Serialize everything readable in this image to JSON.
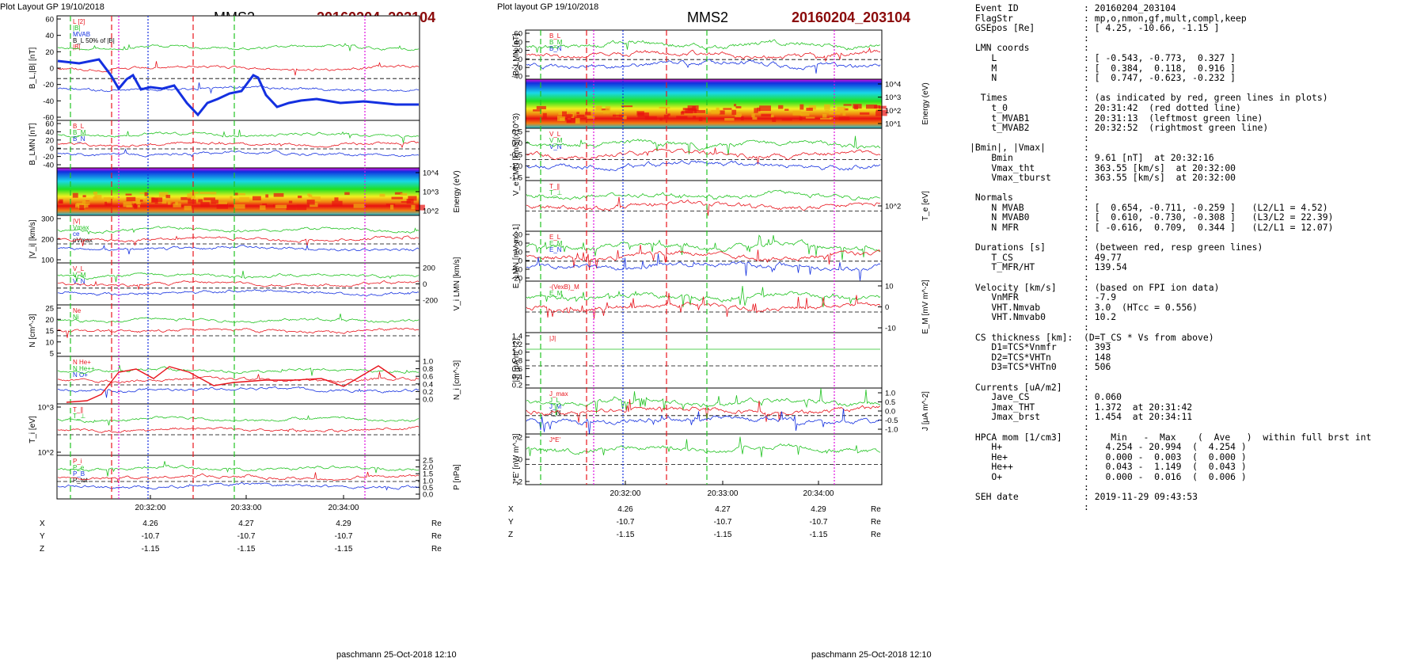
{
  "colors": {
    "red": "#e8141c",
    "green": "#22c322",
    "blue": "#1430e0",
    "magenta": "#e010e0",
    "black": "#000000",
    "gray": "#8a8a8a",
    "title_red": "#8b0a0a"
  },
  "figures": [
    {
      "id": "left",
      "header": "Plot Layout GP 19/10/2018",
      "spacecraft": "MMS2",
      "event": "20160204_203104",
      "footer": "paschmann 25-Oct-2018 12:10",
      "x_ticks": [
        "20:32:00",
        "20:33:00",
        "20:34:00"
      ],
      "orbit": {
        "rows": [
          [
            "X",
            "4.26",
            "4.27",
            "4.29",
            "Re"
          ],
          [
            "Y",
            "-10.7",
            "-10.7",
            "-10.7",
            "Re"
          ],
          [
            "Z",
            "-1.15",
            "-1.15",
            "-1.15",
            "Re"
          ]
        ]
      },
      "panels": [
        {
          "ylabel": "B_L,|B| [nT]",
          "left_ticks": [
            "60",
            "40",
            "20",
            "0",
            "-20",
            "-40",
            "-60"
          ],
          "right_ticks": [],
          "right_label": "",
          "legend": [
            "L [2]",
            "|B|",
            "MVAB",
            "B_L 50% of |B|",
            "|B|"
          ]
        },
        {
          "ylabel": "B_LMN [nT]",
          "left_ticks": [
            "60",
            "40",
            "20",
            "0",
            "-20",
            "-40"
          ],
          "right_ticks": [],
          "right_label": "",
          "legend": [
            "B_L",
            "B_M",
            "B_N"
          ]
        },
        {
          "ylabel": "",
          "left_ticks": [],
          "right_ticks": [
            "10^4",
            "10^3",
            "10^2"
          ],
          "right_label": "Energy (eV)",
          "legend": []
        },
        {
          "ylabel": "|V_i| [km/s]",
          "left_ticks": [
            "300",
            "200",
            "100"
          ],
          "right_ticks": [],
          "right_label": "",
          "legend": [
            "|V|",
            "Vmax",
            "ce",
            "pVmax"
          ]
        },
        {
          "ylabel": "",
          "left_ticks": [],
          "right_ticks": [
            "200",
            "0",
            "-200"
          ],
          "right_label": "V_i LMN [km/s]",
          "legend": [
            "V_L",
            "V_M",
            "V_N"
          ]
        },
        {
          "ylabel": "N [cm^-3]",
          "left_ticks": [
            "25",
            "20",
            "15",
            "10",
            "5"
          ],
          "right_ticks": [],
          "right_label": "",
          "legend": [
            "Ne",
            "Ni"
          ]
        },
        {
          "ylabel": "",
          "left_ticks": [],
          "right_ticks": [
            "1.0",
            "0.8",
            "0.6",
            "0.4",
            "0.2",
            "0.0"
          ],
          "right_label": "N_i [cm^-3]",
          "legend": [
            "N He+",
            "N He++",
            "N O+"
          ]
        },
        {
          "ylabel": "T_i [eV]",
          "left_ticks": [
            "10^3",
            "10^2"
          ],
          "right_ticks": [],
          "right_label": "",
          "legend": [
            "T_∥",
            "T_⊥"
          ]
        },
        {
          "ylabel": "",
          "left_ticks": [],
          "right_ticks": [
            "2.5",
            "2.0",
            "1.5",
            "1.0",
            "0.5",
            "0.0"
          ],
          "right_label": "P [nPa]",
          "legend": [
            "P_i",
            "P_e",
            "P_B",
            "P_tot"
          ]
        }
      ]
    },
    {
      "id": "right",
      "header": "Plot layout GP 19/10/2018",
      "spacecraft": "MMS2",
      "event": "20160204_203104",
      "footer": "paschmann 25-Oct-2018 12:10",
      "x_ticks": [
        "20:32:00",
        "20:33:00",
        "20:34:00"
      ],
      "orbit": {
        "rows": [
          [
            "X",
            "4.26",
            "4.27",
            "4.29",
            "Re"
          ],
          [
            "Y",
            "-10.7",
            "-10.7",
            "-10.7",
            "Re"
          ],
          [
            "Z",
            "-1.15",
            "-1.15",
            "-1.15",
            "Re"
          ]
        ]
      },
      "panels": [
        {
          "ylabel": "B_LMN [nT]",
          "left_ticks": [
            "60",
            "40",
            "20",
            "0",
            "-20",
            "-40"
          ],
          "right_ticks": [],
          "right_label": "",
          "legend": [
            "B_L",
            "B_M",
            "B_N"
          ]
        },
        {
          "ylabel": "",
          "left_ticks": [],
          "right_ticks": [
            "10^4",
            "10^3",
            "10^2",
            "10^1"
          ],
          "right_label": "Energy (eV)",
          "legend": []
        },
        {
          "ylabel": "V_e LMN [km/s](x10^3)",
          "left_ticks": [
            "0.5",
            "0.0",
            "-0.5",
            "-1.0",
            "-1.5"
          ],
          "right_ticks": [],
          "right_label": "",
          "legend": [
            "V_L",
            "V_M",
            "V_N"
          ]
        },
        {
          "ylabel": "",
          "left_ticks": [],
          "right_ticks": [
            "10^2"
          ],
          "right_label": "T_e [eV]",
          "legend": [
            "T_∥",
            "T_⊥"
          ]
        },
        {
          "ylabel": "E_LMN [mV m^-1]",
          "left_ticks": [
            "30",
            "20",
            "10",
            "0",
            "-10",
            "-20"
          ],
          "right_ticks": [],
          "right_label": "",
          "legend": [
            "E_L",
            "E_M",
            "E_N"
          ]
        },
        {
          "ylabel": "",
          "left_ticks": [],
          "right_ticks": [
            "10",
            "0",
            "-10"
          ],
          "right_label": "E_M [mV m^-2]",
          "legend": [
            "-(VexB)_M",
            "E_M"
          ]
        },
        {
          "ylabel": "|J| [μA m^-2]",
          "left_ticks": [
            "1.4",
            "1.2",
            "1.0",
            "0.8",
            "0.6",
            "0.4",
            "0.2"
          ],
          "right_ticks": [],
          "right_label": "",
          "legend": [
            "|J|"
          ]
        },
        {
          "ylabel": "",
          "left_ticks": [],
          "right_ticks": [
            "1.0",
            "0.5",
            "0.0",
            "-0.5",
            "-1.0"
          ],
          "right_label": "J [μA m^-2]",
          "legend": [
            "J_max",
            "J_L",
            "J_M",
            "J_N"
          ]
        },
        {
          "ylabel": "J*E' [nW m^-3]",
          "left_ticks": [
            "2",
            "0",
            "-2"
          ],
          "right_ticks": [],
          "right_label": "",
          "legend": [
            "J*E'"
          ]
        }
      ]
    }
  ],
  "info_text": [
    " Event ID            : 20160204_203104",
    " FlagStr             : mp,o,nmon,gf,mult,compl,keep",
    " GSEpos [Re]         : [ 4.25, -10.66, -1.15 ]",
    "                     :",
    " LMN coords          :",
    "    L                : [ -0.543, -0.773,  0.327 ]",
    "    M                : [  0.384,  0.118,  0.916 ]",
    "    N                : [  0.747, -0.623, -0.232 ]",
    "                     :",
    "  Times              : (as indicated by red, green lines in plots)",
    "    t_0              : 20:31:42  (red dotted line)",
    "    t_MVAB1          : 20:31:13  (leftmost green line)",
    "    t_MVAB2          : 20:32:52  (rightmost green line)",
    "                     :",
    "|Bmin|, |Vmax|       :",
    "    Bmin             : 9.61 [nT]  at 20:32:16",
    "    Vmax_tht         : 363.55 [km/s]  at 20:32:00",
    "    Vmax_tburst      : 363.55 [km/s]  at 20:32:00",
    "                     :",
    " Normals             :",
    "    N MVAB           : [  0.654, -0.711, -0.259 ]   (L2/L1 = 4.52)",
    "    N MVAB0          : [  0.610, -0.730, -0.308 ]   (L3/L2 = 22.39)",
    "    N MFR            : [ -0.616,  0.709,  0.344 ]   (L2/L1 = 12.07)",
    "                     :",
    " Durations [s]       : (between red, resp green lines)",
    "    T_CS             : 49.77",
    "    T_MFR/HT         : 139.54",
    "                     :",
    " Velocity [km/s]     : (based on FPI ion data)",
    "    VnMFR            : -7.9",
    "    VHT.Nmvab        : 3.0  (HTcc = 0.556)",
    "    VHT.Nmvab0       : 10.2",
    "                     :",
    " CS thickness [km]:  (D=T_CS * Vs from above)",
    "    D1=TCS*Vnmfr     : 393",
    "    D2=TCS*VHTn      : 148",
    "    D3=TCS*VHTn0     : 506",
    "                     :",
    " Currents [uA/m2]    :",
    "    Jave_CS          : 0.060",
    "    Jmax_THT         : 1.372  at 20:31:42",
    "    Jmax_brst        : 1.454  at 20:34:11",
    "                     :",
    " HPCA mom [1/cm3]    :    Min   -  Max    (  Ave   )  within full brst int",
    "    H+               :   4.254 - 20.994  (  4.254 )",
    "    He+              :   0.000 -  0.003  (  0.000 )",
    "    He++             :   0.043 -  1.149  (  0.043 )",
    "    O+               :   0.000 -  0.016  (  0.006 )",
    "                     :",
    " SEH date            : 2019-11-29 09:43:53",
    "                     :"
  ]
}
